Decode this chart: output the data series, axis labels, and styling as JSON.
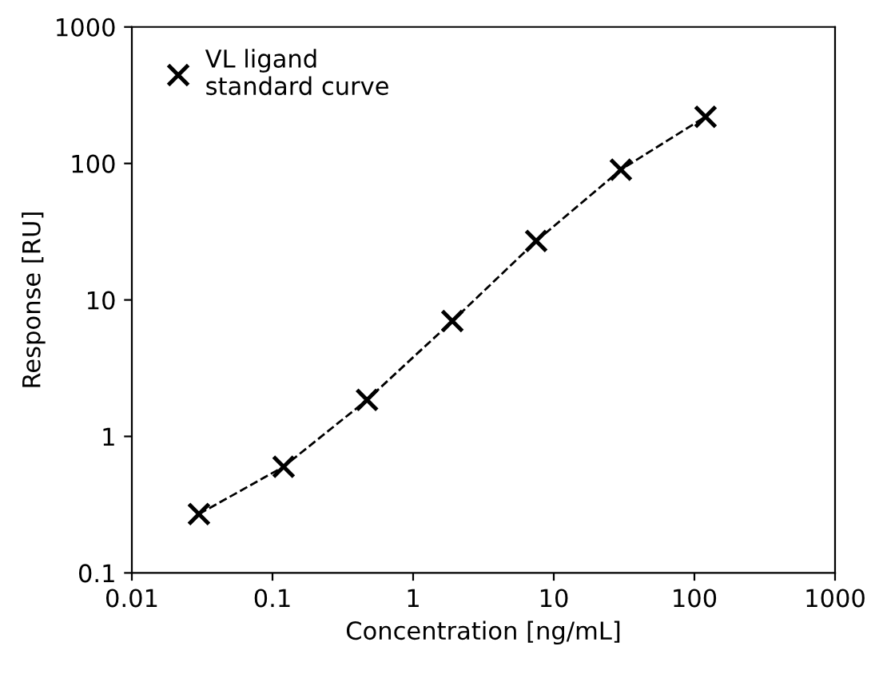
{
  "chart_data": {
    "type": "line",
    "log": "xy",
    "xlabel": "Concentration [ng/mL]",
    "ylabel": "Response [RU]",
    "x": [
      0.03,
      0.12,
      0.47,
      1.9,
      7.5,
      30,
      120
    ],
    "series": [
      {
        "name": "VL ligand\nstandard curve",
        "color": "#000000",
        "values": [
          0.27,
          0.6,
          1.85,
          7,
          27,
          90,
          220
        ]
      }
    ],
    "xlim": [
      0.01,
      1000
    ],
    "ylim": [
      0.1,
      1000
    ],
    "xticks": [
      0.01,
      0.1,
      1,
      10,
      100,
      1000
    ],
    "yticks": [
      0.1,
      1,
      10,
      100,
      1000
    ],
    "marker": "cross",
    "line_style": "dashed",
    "legend": "top left",
    "grid": false
  }
}
